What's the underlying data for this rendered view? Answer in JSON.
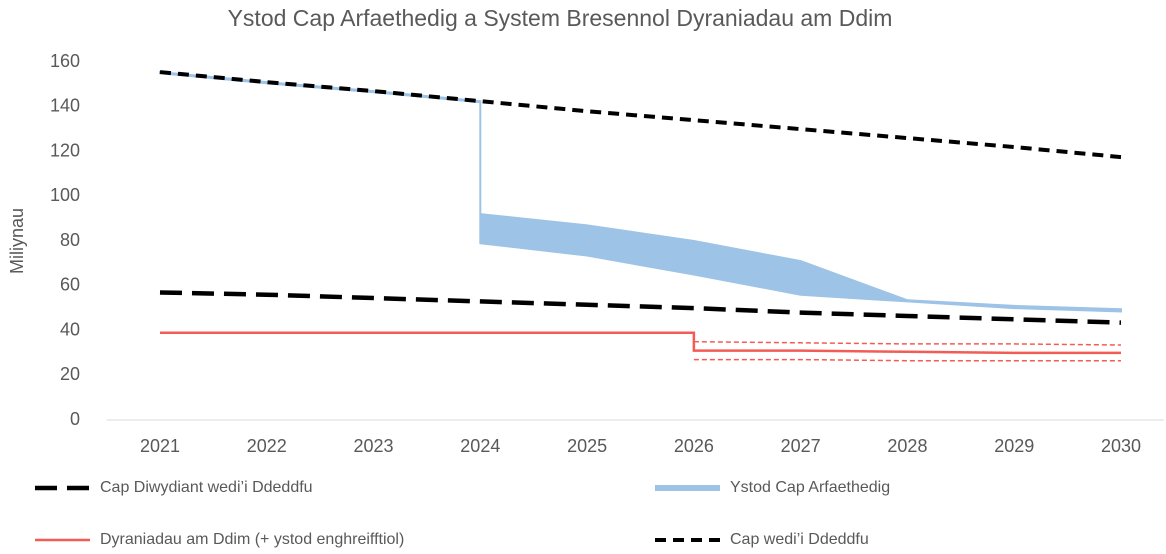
{
  "chart_data": {
    "type": "line",
    "title": "Ystod Cap Arfaethedig a System Bresennol Dyraniadau am Ddim",
    "y_label": "Miliynau",
    "xlim": [
      2020.5,
      2030.4
    ],
    "xticks": [
      2021,
      2022,
      2023,
      2024,
      2025,
      2026,
      2027,
      2028,
      2029,
      2030
    ],
    "ylim": [
      0,
      160
    ],
    "yticks": [
      0,
      20,
      40,
      60,
      80,
      100,
      120,
      140,
      160
    ],
    "grid": false,
    "series": [
      {
        "name": "Cap Diwydiant wedi’i Ddeddfu",
        "style": "long-dash",
        "color": "#000000",
        "x": [
          2021,
          2022,
          2023,
          2024,
          2025,
          2026,
          2027,
          2028,
          2029,
          2030
        ],
        "values": [
          57,
          56,
          54.5,
          53,
          51.5,
          50,
          48,
          46.5,
          45,
          43.5
        ]
      },
      {
        "name": "Ystod Cap Arfaethedig",
        "style": "band",
        "color": "#9dc3e6",
        "x": [
          2021,
          2022,
          2023,
          2024,
          2024,
          2025,
          2026,
          2027,
          2028,
          2029,
          2030
        ],
        "upper": [
          155.5,
          151,
          147,
          142.5,
          92,
          87,
          80,
          71,
          53.5,
          51,
          49.5
        ],
        "lower": [
          155,
          150.5,
          146.5,
          142,
          79,
          73.5,
          65,
          56,
          53,
          50,
          48.5
        ]
      },
      {
        "name": "Dyraniadau am Ddim (+ ystod enghreifftiol)",
        "style": "solid",
        "color": "#f25c54",
        "x": [
          2021,
          2026,
          2026,
          2027,
          2028,
          2029,
          2030
        ],
        "values": [
          39,
          39,
          31,
          31,
          30.5,
          30,
          30
        ]
      },
      {
        "name": "Cap wedi’i Ddeddfu",
        "style": "short-dash",
        "color": "#000000",
        "x": [
          2021,
          2022,
          2023,
          2024,
          2025,
          2026,
          2027,
          2028,
          2029,
          2030
        ],
        "values": [
          155.5,
          151,
          147,
          142.5,
          138,
          134,
          130,
          126,
          122,
          117.5
        ]
      },
      {
        "style": "thin-dash",
        "color": "#f25c54",
        "x": [
          2026,
          2027,
          2028,
          2029,
          2030
        ],
        "values": [
          35,
          34.5,
          34,
          34,
          33.5
        ]
      },
      {
        "style": "thin-dash",
        "color": "#f25c54",
        "x": [
          2026,
          2027,
          2028,
          2029,
          2030
        ],
        "values": [
          27,
          27,
          26.5,
          26.5,
          26.5
        ]
      }
    ]
  }
}
